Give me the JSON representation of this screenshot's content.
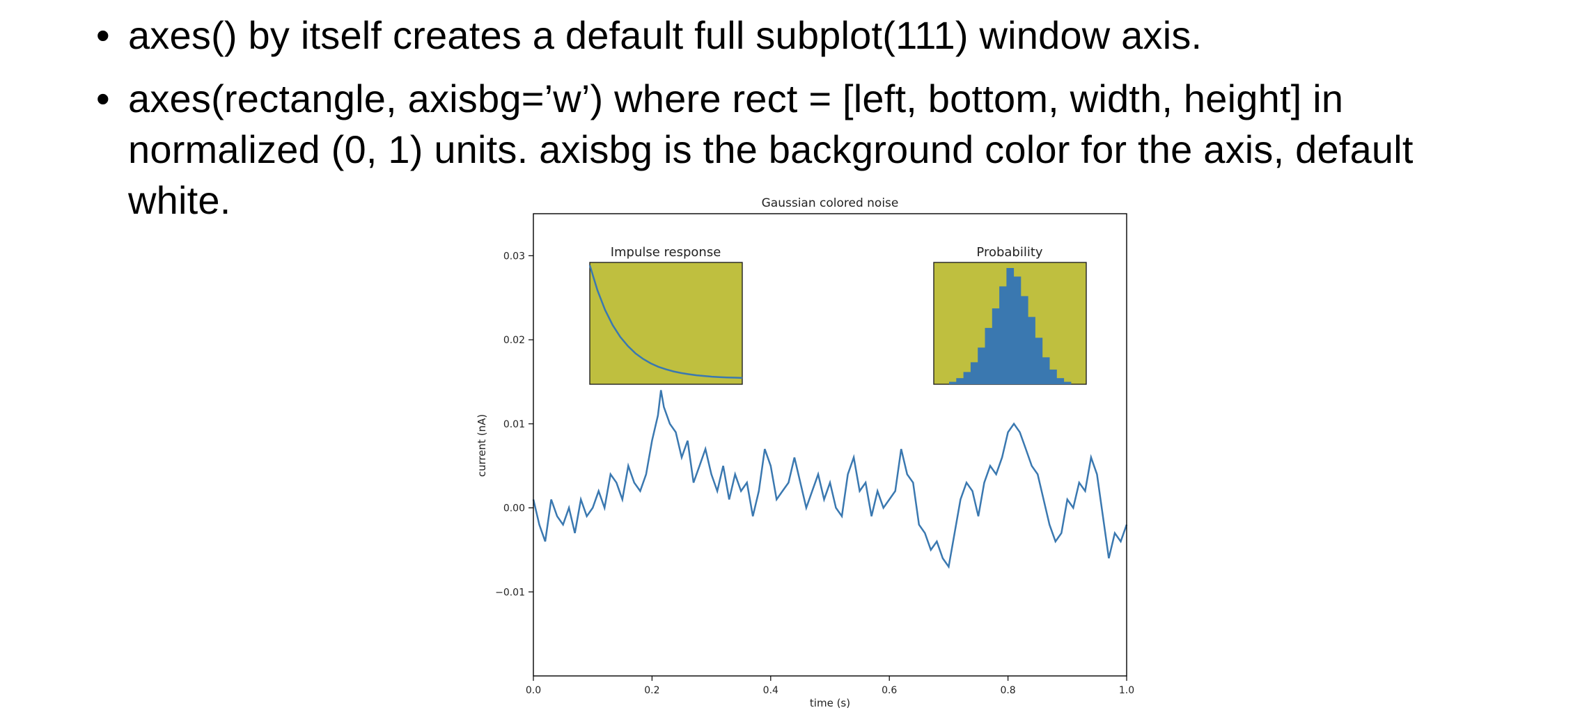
{
  "slide": {
    "bullets": [
      "axes() by itself creates a default full subplot(111) window axis.",
      "axes(rectangle, axisbg=’w’) where rect = [left, bottom, width, height] in normalized (0, 1) units. axisbg is the background color for the axis, default white."
    ],
    "bullet_glyph": "•"
  },
  "chart_data": [
    {
      "type": "line",
      "title": "Gaussian colored noise",
      "xlabel": "time (s)",
      "ylabel": "current (nA)",
      "xlim": [
        0,
        1
      ],
      "ylim": [
        -0.02,
        0.035
      ],
      "xticks": [
        0.0,
        0.2,
        0.4,
        0.6,
        0.8,
        1.0
      ],
      "xtick_labels": [
        "0.0",
        "0.2",
        "0.4",
        "0.6",
        "0.8",
        "1.0"
      ],
      "yticks": [
        -0.01,
        0.0,
        0.01,
        0.02,
        0.03
      ],
      "ytick_labels": [
        "−0.01",
        "0.00",
        "0.01",
        "0.02",
        "0.03"
      ],
      "grid": false,
      "line_color": "#3a78b0",
      "series": [
        {
          "x": [
            0.0,
            0.01,
            0.02,
            0.03,
            0.04,
            0.05,
            0.06,
            0.07,
            0.08,
            0.09,
            0.1,
            0.11,
            0.12,
            0.13,
            0.14,
            0.15,
            0.16,
            0.17,
            0.18,
            0.19,
            0.2,
            0.21,
            0.215,
            0.22,
            0.23,
            0.24,
            0.25,
            0.26,
            0.27,
            0.28,
            0.29,
            0.3,
            0.31,
            0.32,
            0.33,
            0.34,
            0.35,
            0.36,
            0.37,
            0.38,
            0.39,
            0.4,
            0.41,
            0.42,
            0.43,
            0.44,
            0.45,
            0.46,
            0.47,
            0.48,
            0.49,
            0.5,
            0.51,
            0.52,
            0.53,
            0.54,
            0.55,
            0.56,
            0.57,
            0.58,
            0.59,
            0.6,
            0.61,
            0.62,
            0.63,
            0.64,
            0.65,
            0.66,
            0.67,
            0.68,
            0.69,
            0.7,
            0.71,
            0.72,
            0.73,
            0.74,
            0.75,
            0.76,
            0.77,
            0.78,
            0.79,
            0.8,
            0.81,
            0.82,
            0.83,
            0.84,
            0.85,
            0.86,
            0.87,
            0.88,
            0.89,
            0.9,
            0.91,
            0.92,
            0.93,
            0.94,
            0.95,
            0.96,
            0.97,
            0.98,
            0.99,
            1.0
          ],
          "y": [
            0.001,
            -0.002,
            -0.004,
            0.001,
            -0.001,
            -0.002,
            0.0,
            -0.003,
            0.001,
            -0.001,
            0.0,
            0.002,
            0.0,
            0.004,
            0.003,
            0.001,
            0.005,
            0.003,
            0.002,
            0.004,
            0.008,
            0.011,
            0.014,
            0.012,
            0.01,
            0.009,
            0.006,
            0.008,
            0.003,
            0.005,
            0.007,
            0.004,
            0.002,
            0.005,
            0.001,
            0.004,
            0.002,
            0.003,
            -0.001,
            0.002,
            0.007,
            0.005,
            0.001,
            0.002,
            0.003,
            0.006,
            0.003,
            0.0,
            0.002,
            0.004,
            0.001,
            0.003,
            0.0,
            -0.001,
            0.004,
            0.006,
            0.002,
            0.003,
            -0.001,
            0.002,
            0.0,
            0.001,
            0.002,
            0.007,
            0.004,
            0.003,
            -0.002,
            -0.003,
            -0.005,
            -0.004,
            -0.006,
            -0.007,
            -0.003,
            0.001,
            0.003,
            0.002,
            -0.001,
            0.003,
            0.005,
            0.004,
            0.006,
            0.009,
            0.01,
            0.009,
            0.007,
            0.005,
            0.004,
            0.001,
            -0.002,
            -0.004,
            -0.003,
            0.001,
            0.0,
            0.003,
            0.002,
            0.006,
            0.004,
            -0.001,
            -0.006,
            -0.003,
            -0.004,
            -0.002
          ]
        }
      ]
    },
    {
      "type": "line",
      "title": "Impulse response",
      "axis_bg": "#bfbf3f",
      "line_color": "#3a78b0",
      "x": [
        0,
        0.05,
        0.1,
        0.15,
        0.2,
        0.25,
        0.3,
        0.35,
        0.4,
        0.45,
        0.5,
        0.55,
        0.6,
        0.65,
        0.7,
        0.75,
        0.8,
        0.85,
        0.9,
        0.95,
        1.0
      ],
      "y": [
        1.0,
        0.779,
        0.607,
        0.472,
        0.368,
        0.287,
        0.223,
        0.174,
        0.135,
        0.105,
        0.082,
        0.064,
        0.05,
        0.039,
        0.03,
        0.024,
        0.018,
        0.014,
        0.011,
        0.009,
        0.007
      ]
    },
    {
      "type": "bar",
      "title": "Probability",
      "axis_bg": "#bfbf3f",
      "bar_color": "#3a78b0",
      "x": [
        -0.04,
        -0.035,
        -0.03,
        -0.025,
        -0.02,
        -0.015,
        -0.01,
        -0.005,
        0.0,
        0.005,
        0.01,
        0.015,
        0.02,
        0.025,
        0.03,
        0.035,
        0.04
      ],
      "values": [
        0.02,
        0.05,
        0.1,
        0.18,
        0.3,
        0.46,
        0.62,
        0.8,
        0.95,
        0.88,
        0.72,
        0.55,
        0.38,
        0.22,
        0.12,
        0.05,
        0.02
      ]
    }
  ]
}
